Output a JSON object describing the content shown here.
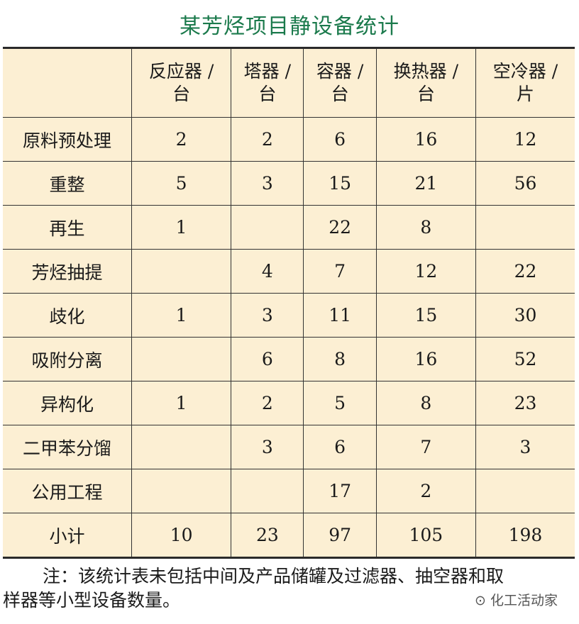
{
  "title": "某芳烃项目静设备统计",
  "table": {
    "headers": [
      "",
      "反应器 / 台",
      "塔器 / 台",
      "容器 / 台",
      "换热器 / 台",
      "空冷器 / 片"
    ],
    "header_lines": [
      [
        "",
        ""
      ],
      [
        "反应器 /",
        "台"
      ],
      [
        "塔器 /",
        "台"
      ],
      [
        "容器 /",
        "台"
      ],
      [
        "换热器 /",
        "台"
      ],
      [
        "空冷器 /",
        "片"
      ]
    ],
    "rows": [
      [
        "原料预处理",
        "2",
        "2",
        "6",
        "16",
        "12"
      ],
      [
        "重整",
        "5",
        "3",
        "15",
        "21",
        "56"
      ],
      [
        "再生",
        "1",
        "",
        "22",
        "8",
        ""
      ],
      [
        "芳烃抽提",
        "",
        "4",
        "7",
        "12",
        "22"
      ],
      [
        "歧化",
        "1",
        "3",
        "11",
        "15",
        "30"
      ],
      [
        "吸附分离",
        "",
        "6",
        "8",
        "16",
        "52"
      ],
      [
        "异构化",
        "1",
        "2",
        "5",
        "8",
        "23"
      ],
      [
        "二甲苯分馏",
        "",
        "3",
        "6",
        "7",
        "3"
      ],
      [
        "公用工程",
        "",
        "",
        "17",
        "2",
        ""
      ],
      [
        "小计",
        "10",
        "23",
        "97",
        "105",
        "198"
      ]
    ]
  },
  "note": {
    "line1": "注：该统计表未包括中间及产品储罐及过滤器、抽空器和取",
    "line2": "样器等小型设备数量。"
  },
  "watermark": "化工活动家",
  "colors": {
    "title": "#1b7a4c",
    "table_bg": "#fcefd3"
  }
}
